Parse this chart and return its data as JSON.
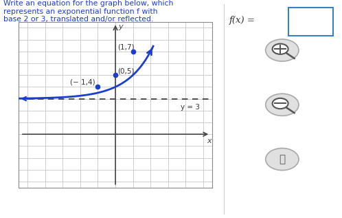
{
  "title_text": "Write an equation for the graph below, which\nrepresents an exponential function f with\nbase 2 or 3, translated and/or reflected.",
  "fx_label": "f(x) =",
  "points": [
    [
      -1,
      4
    ],
    [
      0,
      5
    ],
    [
      1,
      7
    ]
  ],
  "point_labels": [
    "(− 1,4)",
    "(0,5)",
    "(1,7)"
  ],
  "asymptote_y": 3,
  "asymptote_label": "y = 3",
  "curve_color": "#1a3ecf",
  "point_color": "#1a3ecf",
  "asymptote_color": "#000000",
  "asymptote_arrow_color": "#1a3ecf",
  "grid_color": "#bbbbbb",
  "axis_color": "#444444",
  "xlim": [
    -5.5,
    5.5
  ],
  "ylim": [
    -4.5,
    9.5
  ],
  "background_color": "#ffffff",
  "text_color": "#2e2e2e",
  "title_color": "#1a3ecf",
  "label_color": "#1a3ecf",
  "point_label_color": "#333333",
  "icon_bg": "#e0e0e0",
  "icon_border": "#aaaaaa",
  "box_color": "#3a7fc1"
}
